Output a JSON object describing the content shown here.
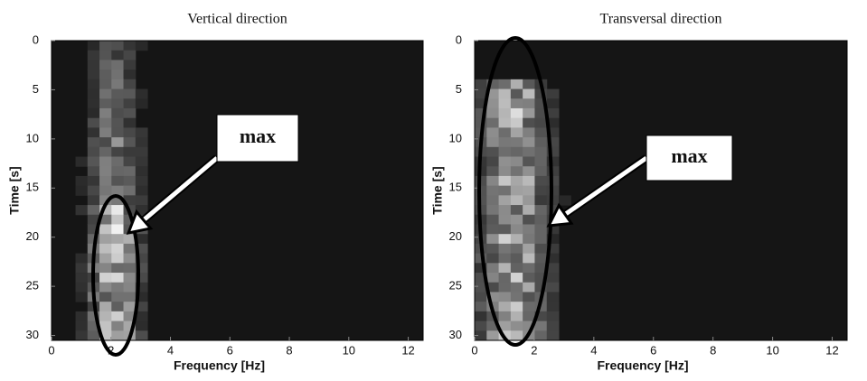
{
  "chart_data": [
    {
      "type": "heatmap",
      "title": "Vertical direction",
      "xlabel": "Frequency [Hz]",
      "ylabel": "Time [s]",
      "xlim": [
        0,
        12.5
      ],
      "ylim": [
        0,
        30.5
      ],
      "xticks": [
        0,
        2,
        4,
        6,
        8,
        10,
        12
      ],
      "yticks": [
        0,
        5,
        10,
        15,
        20,
        25,
        30
      ],
      "y_inverted": true,
      "annotation": "max"
    },
    {
      "type": "heatmap",
      "title": "Transversal direction",
      "xlabel": "Frequency [Hz]",
      "ylabel": "Time [s]",
      "xlim": [
        0,
        12.5
      ],
      "ylim": [
        0,
        30.5
      ],
      "xticks": [
        0,
        2,
        4,
        6,
        8,
        10,
        12
      ],
      "yticks": [
        0,
        5,
        10,
        15,
        20,
        25,
        30
      ],
      "y_inverted": true,
      "annotation": "max"
    }
  ]
}
